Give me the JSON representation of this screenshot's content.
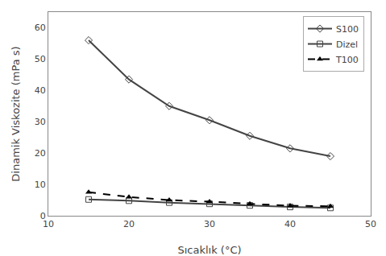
{
  "chart_data": {
    "type": "line",
    "xlabel": "Sıcaklık (°C)",
    "ylabel": "Dinamik Viskozite (mPa s)",
    "x": [
      15,
      20,
      25,
      30,
      35,
      40,
      45
    ],
    "series": [
      {
        "name": "S100",
        "color": "#444444",
        "marker": "diamond-open",
        "line_style": "solid",
        "values": [
          56,
          43.5,
          35,
          30.5,
          25.5,
          21.5,
          19
        ]
      },
      {
        "name": "Dizel",
        "color": "#444444",
        "marker": "square-open",
        "line_style": "solid",
        "values": [
          5.2,
          4.8,
          4.2,
          3.8,
          3.3,
          2.8,
          2.5
        ]
      },
      {
        "name": "T100",
        "color": "#000000",
        "marker": "triangle-up",
        "line_style": "dashed",
        "values": [
          7.5,
          6.0,
          5.0,
          4.5,
          3.8,
          3.2,
          3.0
        ]
      }
    ],
    "xlim": [
      10,
      50
    ],
    "ylim": [
      0,
      65
    ],
    "xticks": [
      10,
      20,
      30,
      40,
      50
    ],
    "yticks": [
      0,
      10,
      20,
      30,
      40,
      50,
      60
    ],
    "grid": false,
    "legend": "upper right"
  }
}
